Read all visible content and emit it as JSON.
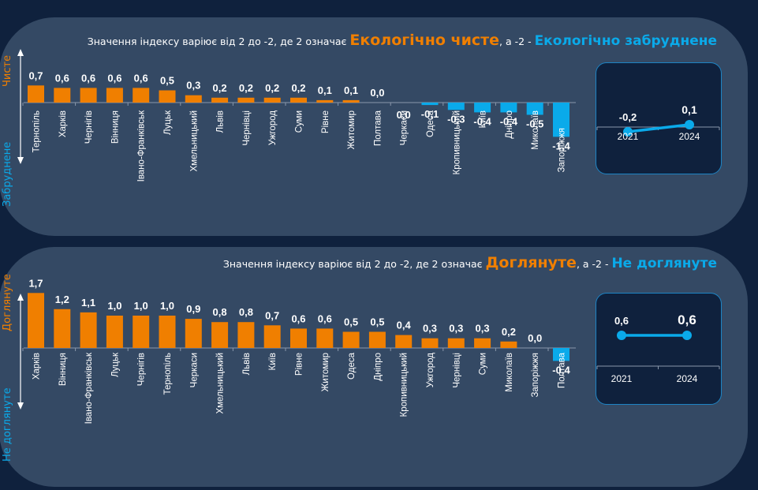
{
  "colors": {
    "background": "#0f213d",
    "panel": "#344964",
    "positive": "#f07f00",
    "negative": "#0aaaea",
    "text": "#ffffff",
    "axis": "#8a98ab"
  },
  "chart_data": [
    {
      "type": "bar",
      "title": "Значення індексу варіює від 2 до -2, де 2 означає Екологічно чисте, а -2 - Екологічно забруднене",
      "subtitle_parts": {
        "prefix": "Значення індексу варіює від 2 до -2, де 2 означає ",
        "positive_term": "Екологічно чисте",
        "middle": ", а -2 - ",
        "negative_term": "Екологічно забруднене"
      },
      "ylabel_top": "Чисте",
      "ylabel_bottom": "Забруднене",
      "ylim": [
        -2,
        2
      ],
      "categories": [
        "Тернопіль",
        "Харків",
        "Чернігів",
        "Вінниця",
        "Івано-Франківськ",
        "Луцьк",
        "Хмельницький",
        "Львів",
        "Чернівці",
        "Ужгород",
        "Суми",
        "Рівне",
        "Житомир",
        "Полтава",
        "Черкаси",
        "Одеса",
        "Кропивницький",
        "Київ",
        "Дніпро",
        "Миколаїв",
        "Запоріжжя"
      ],
      "values": [
        0.7,
        0.6,
        0.6,
        0.6,
        0.6,
        0.5,
        0.3,
        0.2,
        0.2,
        0.2,
        0.2,
        0.1,
        0.1,
        0.0,
        0.0,
        -0.1,
        -0.3,
        -0.4,
        -0.4,
        -0.5,
        -1.4
      ],
      "labels": [
        "0,7",
        "0,6",
        "0,6",
        "0,6",
        "0,6",
        "0,5",
        "0,3",
        "0,2",
        "0,2",
        "0,2",
        "0,2",
        "0,1",
        "0,1",
        "0,0",
        "0,0",
        "-0,1",
        "-0,3",
        "-0,4",
        "-0,4",
        "-0,5",
        "-1,4"
      ],
      "inset": {
        "type": "line",
        "x": [
          "2021",
          "2024"
        ],
        "values": [
          -0.2,
          0.1
        ],
        "labels": [
          "-0,2",
          "0,1"
        ]
      }
    },
    {
      "type": "bar",
      "title": "Значення індексу варіює від 2 до -2, де 2 означає Доглянуте, а -2 - Не доглянуте",
      "subtitle_parts": {
        "prefix": "Значення індексу варіює від 2 до -2, де 2 означає ",
        "positive_term": "Доглянуте",
        "middle": ", а -2 - ",
        "negative_term": "Не доглянуте"
      },
      "ylabel_top": "Доглянуте",
      "ylabel_bottom": "Не доглянуте",
      "ylim": [
        -2,
        2
      ],
      "categories": [
        "Харків",
        "Вінниця",
        "Івано-Франківськ",
        "Луцьк",
        "Чернігів",
        "Тернопіль",
        "Черкаси",
        "Хмельницький",
        "Львів",
        "Київ",
        "Рівне",
        "Житомир",
        "Одеса",
        "Дніпро",
        "Кропивницький",
        "Ужгород",
        "Чернівці",
        "Суми",
        "Миколаїв",
        "Запоріжжя",
        "Полтава"
      ],
      "values": [
        1.7,
        1.2,
        1.1,
        1.0,
        1.0,
        1.0,
        0.9,
        0.8,
        0.8,
        0.7,
        0.6,
        0.6,
        0.5,
        0.5,
        0.4,
        0.3,
        0.3,
        0.3,
        0.2,
        0.0,
        -0.4
      ],
      "labels": [
        "1,7",
        "1,2",
        "1,1",
        "1,0",
        "1,0",
        "1,0",
        "0,9",
        "0,8",
        "0,8",
        "0,7",
        "0,6",
        "0,6",
        "0,5",
        "0,5",
        "0,4",
        "0,3",
        "0,3",
        "0,3",
        "0,2",
        "0,0",
        "-0,4"
      ],
      "inset": {
        "type": "line",
        "x": [
          "2021",
          "2024"
        ],
        "values": [
          0.6,
          0.6
        ],
        "labels": [
          "0,6",
          "0,6"
        ]
      }
    }
  ]
}
